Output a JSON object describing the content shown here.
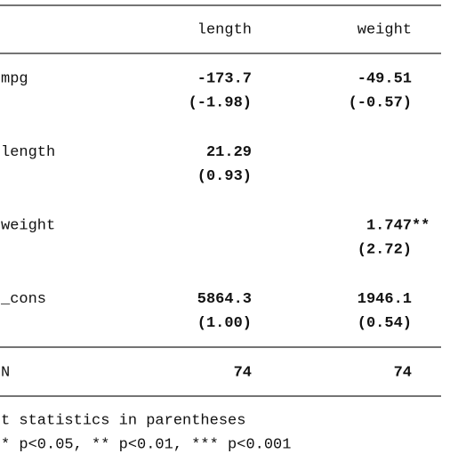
{
  "table": {
    "header": [
      "length",
      "weight"
    ],
    "groups": [
      {
        "label": "mpg",
        "coef": [
          "-173.7",
          "-49.51"
        ],
        "t": [
          "(-1.98)",
          "(-0.57)"
        ]
      },
      {
        "label": "length",
        "coef": [
          "21.29",
          null
        ],
        "t": [
          "(0.93)",
          null
        ]
      },
      {
        "label": "weight",
        "coef": [
          null,
          "1.747**"
        ],
        "t": [
          null,
          "(2.72)"
        ]
      },
      {
        "label": "_cons",
        "coef": [
          "5864.3",
          "1946.1"
        ],
        "t": [
          "(1.00)",
          "(0.54)"
        ]
      }
    ],
    "n_row": {
      "label": "N",
      "cells": [
        "74",
        "74"
      ]
    },
    "notes": [
      "t statistics in parentheses",
      "* p<0.05, ** p<0.01, *** p<0.001"
    ]
  }
}
